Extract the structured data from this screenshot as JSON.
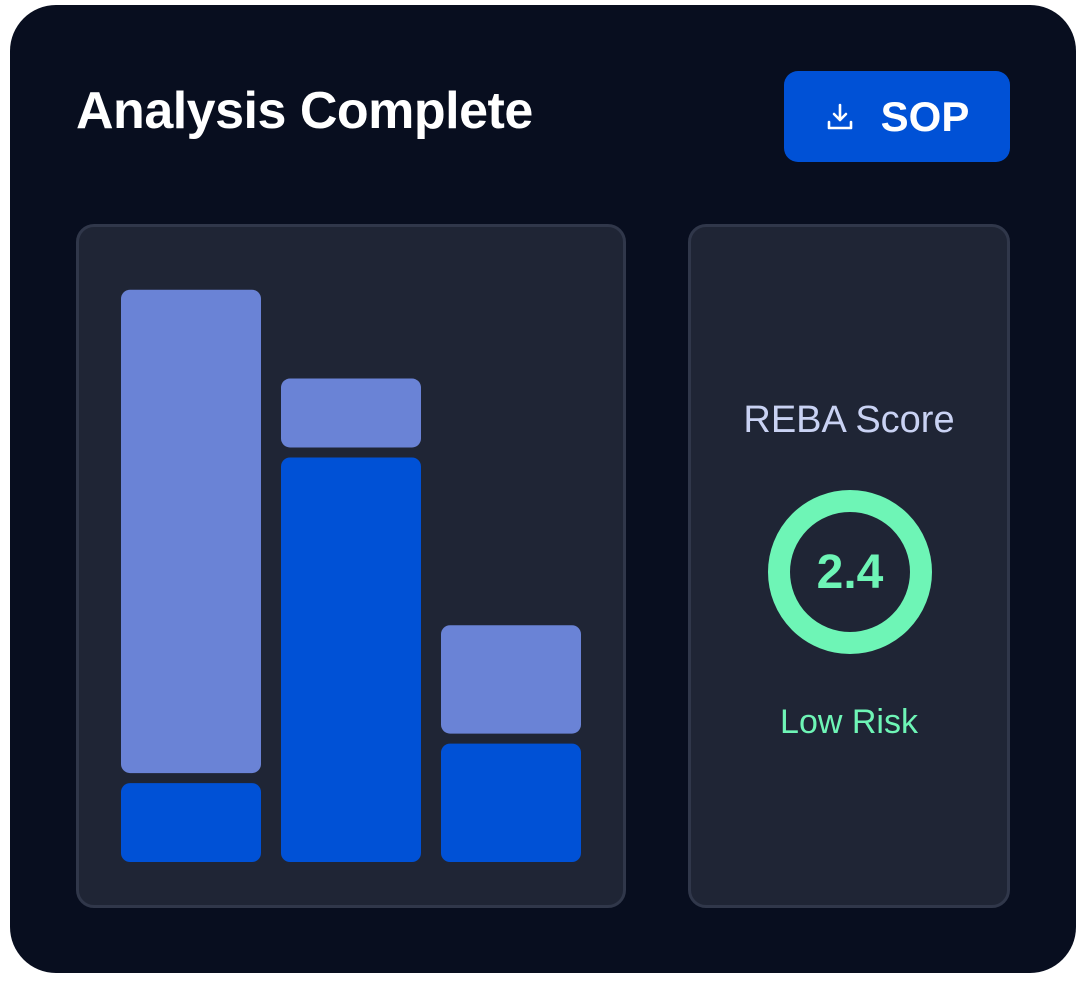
{
  "header": {
    "title": "Analysis Complete",
    "sop_button": {
      "label": "SOP",
      "icon": "download-icon"
    }
  },
  "chart_data": {
    "type": "bar",
    "stacked": true,
    "categories": [
      "",
      "",
      ""
    ],
    "series": [
      {
        "values": [
          8,
          41,
          12
        ],
        "color": "#0051d6"
      },
      {
        "values": [
          50,
          8,
          12
        ],
        "color": "#6a83d6"
      }
    ],
    "ylim": [
      0,
      60
    ],
    "grid": false,
    "legend": "none"
  },
  "score": {
    "label": "REBA Score",
    "value": "2.4",
    "risk": "Low Risk",
    "color": "#6ef5b6"
  },
  "colors": {
    "background": "#080e1f",
    "panel": "#1f2535",
    "accent": "#0051d6"
  }
}
